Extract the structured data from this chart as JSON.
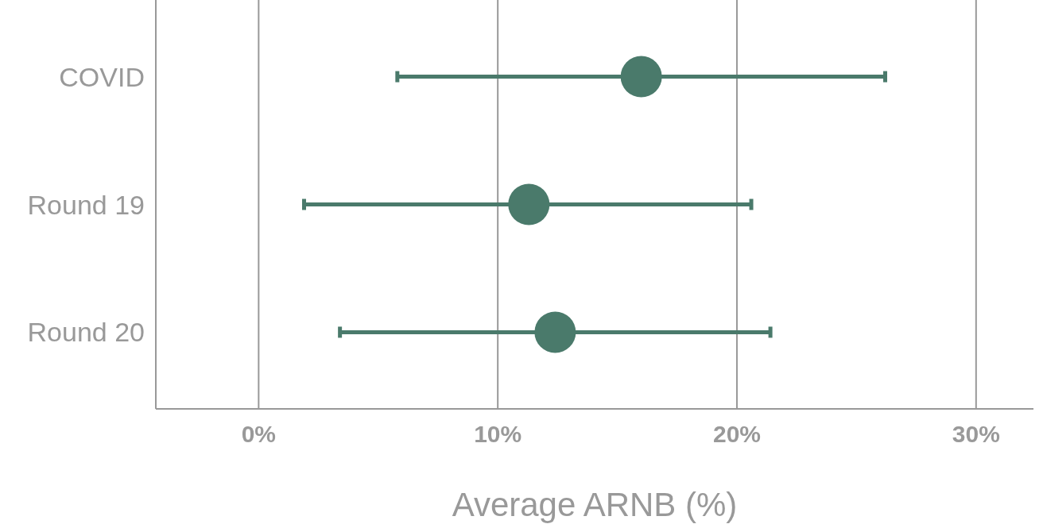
{
  "chart_data": {
    "type": "scatter",
    "orientation": "horizontal",
    "categories": [
      "COVID",
      "Round 19",
      "Round 20"
    ],
    "values": [
      16.0,
      11.3,
      12.4
    ],
    "errors": [
      [
        5.8,
        26.2
      ],
      [
        1.9,
        20.6
      ],
      [
        3.4,
        21.4
      ]
    ],
    "color": "#4a7a6b",
    "marker": "circle",
    "grid": "x",
    "xlim": [
      -4.3,
      32.4
    ],
    "xticks": [
      {
        "value": 0,
        "label": "0%"
      },
      {
        "value": 10,
        "label": "10%"
      },
      {
        "value": 20,
        "label": "20%"
      },
      {
        "value": 30,
        "label": "30%"
      }
    ],
    "xlabel": "Average ARNB (%)"
  }
}
